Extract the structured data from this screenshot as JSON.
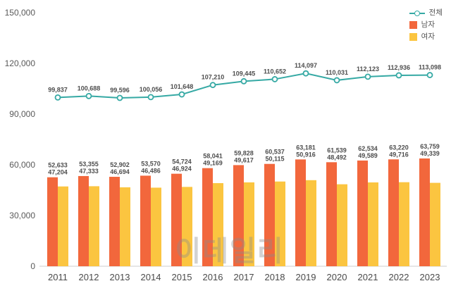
{
  "chart_data": {
    "type": "bar",
    "subtype": "grouped-bars-with-line-overlay",
    "categories": [
      "2011",
      "2012",
      "2013",
      "2014",
      "2015",
      "2016",
      "2017",
      "2018",
      "2019",
      "2020",
      "2021",
      "2022",
      "2023"
    ],
    "series": [
      {
        "name": "전체",
        "type": "line",
        "color": "#35a9a4",
        "values": [
          99837,
          100688,
          99596,
          100056,
          101648,
          107210,
          109445,
          110652,
          114097,
          110031,
          112123,
          112936,
          113098
        ]
      },
      {
        "name": "남자",
        "type": "bar",
        "color": "#f2673c",
        "values": [
          52633,
          53355,
          52902,
          53570,
          54724,
          58041,
          59828,
          60537,
          63181,
          61539,
          62534,
          63220,
          63759
        ]
      },
      {
        "name": "여자",
        "type": "bar",
        "color": "#fbc540",
        "values": [
          47204,
          47333,
          46694,
          46486,
          46924,
          49169,
          49617,
          50115,
          50916,
          48492,
          49589,
          49716,
          49339
        ]
      }
    ],
    "title": "",
    "xlabel": "",
    "ylabel": "",
    "ylim": [
      0,
      150000
    ],
    "yticks": [
      0,
      30000,
      60000,
      90000,
      120000,
      150000
    ],
    "grid": false,
    "legend_position": "top-right",
    "watermark": "이데일리"
  }
}
